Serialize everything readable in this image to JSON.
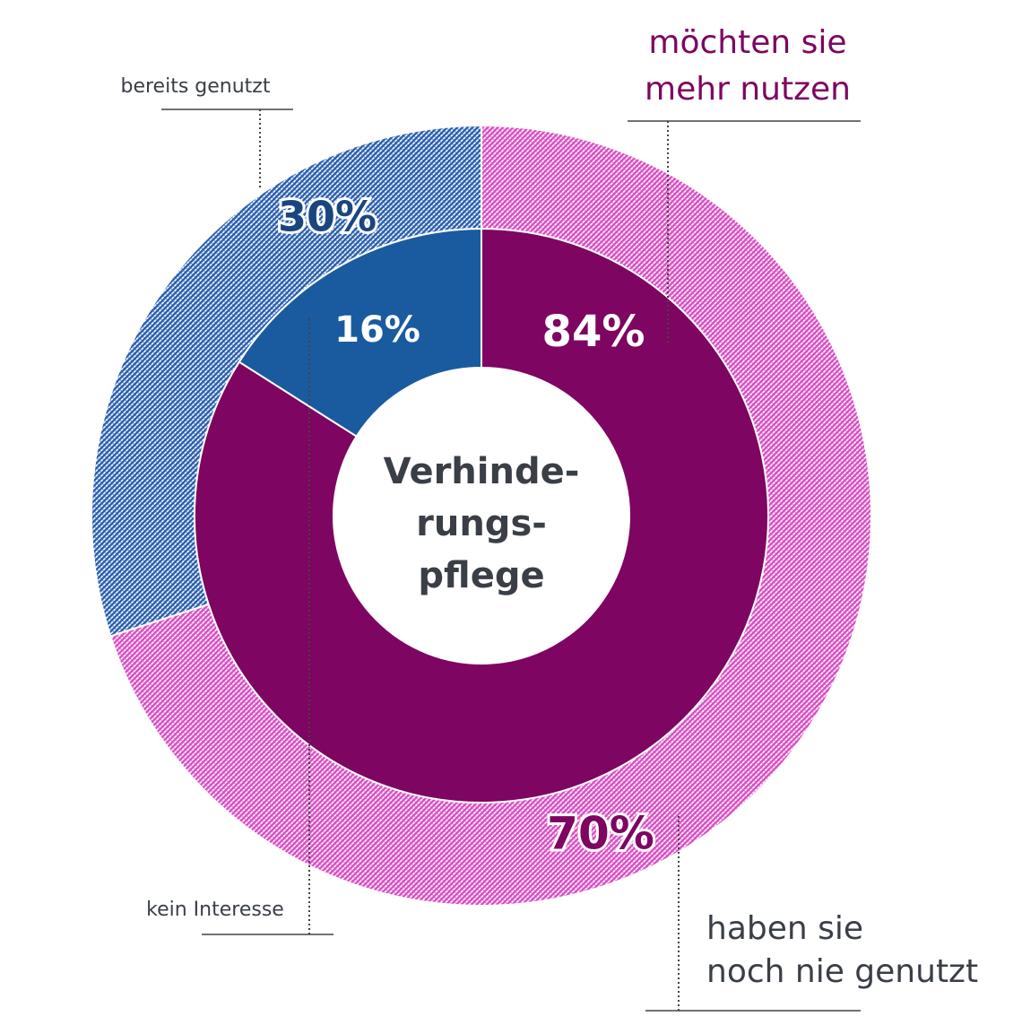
{
  "chart_data": {
    "type": "nested-donut",
    "center_label": [
      "Verhinde-",
      "rungs-",
      "pflege"
    ],
    "rings": [
      {
        "labels": [
          [
            "haben sie",
            "noch nie genutzt"
          ],
          [
            "bereits genutzt"
          ]
        ],
        "values": [
          70,
          30
        ],
        "value_labels": [
          "70%",
          "30%"
        ],
        "colors": [
          "#d94fc4",
          "#2a5fae"
        ],
        "hatched": true
      },
      {
        "labels": [
          [
            "möchten sie",
            "mehr nutzen"
          ],
          [
            "kein Interesse"
          ]
        ],
        "values": [
          84,
          16
        ],
        "value_labels": [
          "84%",
          "16%"
        ],
        "colors": [
          "#7e0561",
          "#1a5ba0"
        ],
        "hatched": false
      }
    ]
  }
}
